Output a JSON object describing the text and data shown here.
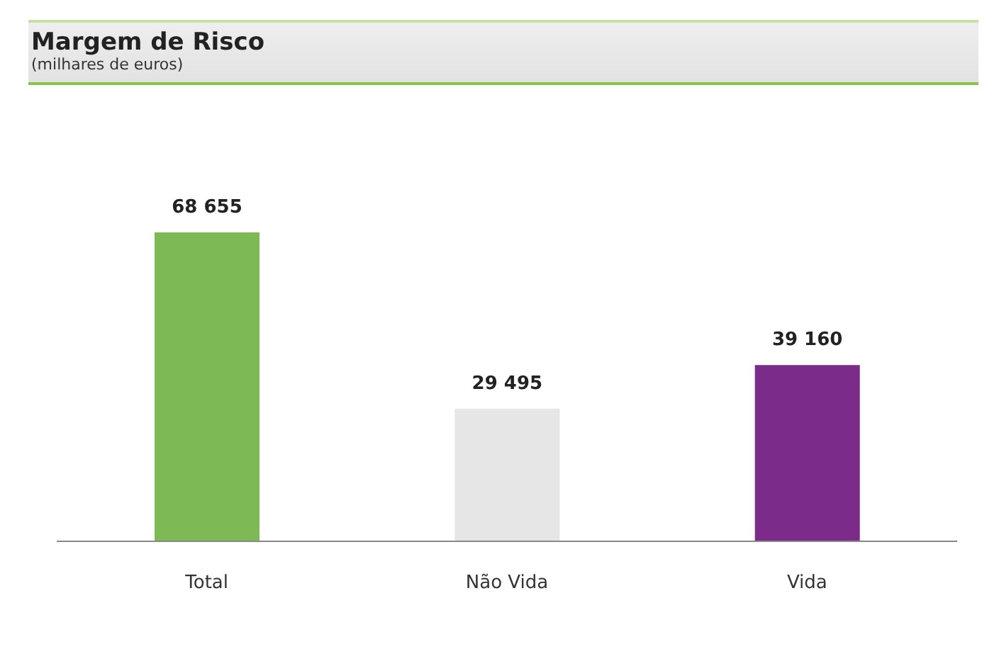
{
  "chart_data": {
    "type": "bar",
    "title": "Margem de Risco",
    "subtitle": "(milhares de euros)",
    "categories": [
      "Total",
      "Não Vida",
      "Vida"
    ],
    "values": [
      68655,
      29495,
      39160
    ],
    "colors": [
      "#7dba55",
      "#e6e6e6",
      "#7b2c8b"
    ],
    "value_labels": [
      "68 655",
      "29 495",
      "39 160"
    ],
    "grid": false,
    "legend": false
  }
}
